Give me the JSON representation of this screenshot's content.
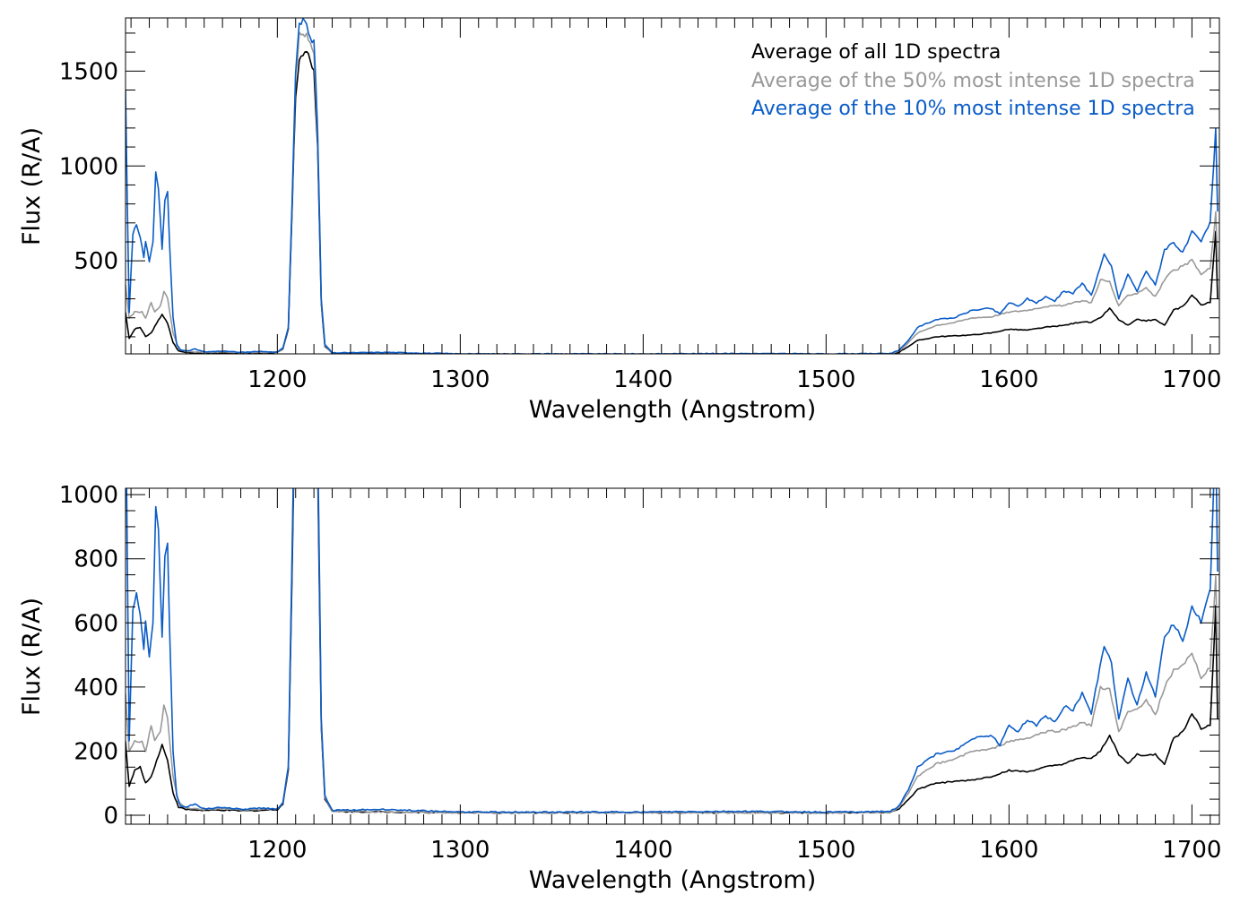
{
  "chart_data": [
    {
      "type": "line",
      "title": "",
      "xlabel": "Wavelength (Angstrom)",
      "ylabel": "Flux (R/A)",
      "xlim": [
        1117,
        1715
      ],
      "ylim": [
        10,
        1780
      ],
      "xticks": [
        1200,
        1300,
        1400,
        1500,
        1600,
        1700
      ],
      "yticks": [
        500,
        1000,
        1500
      ],
      "grid": false,
      "legend_position": "top-right",
      "legend": [
        "Average of all 1D spectra",
        "Average of the 50% most intense 1D spectra",
        "Average of the 10% most intense 1D spectra"
      ]
    },
    {
      "type": "line",
      "title": "",
      "xlabel": "Wavelength (Angstrom)",
      "ylabel": "Flux (R/A)",
      "xlim": [
        1117,
        1715
      ],
      "ylim": [
        -28,
        1020
      ],
      "xticks": [
        1200,
        1300,
        1400,
        1500,
        1600,
        1700
      ],
      "yticks": [
        0,
        200,
        400,
        600,
        800,
        1000
      ],
      "grid": false
    }
  ],
  "series": [
    {
      "name": "Average of all 1D spectra",
      "color": "#000000",
      "points": [
        [
          1117,
          230
        ],
        [
          1119,
          90
        ],
        [
          1122,
          140
        ],
        [
          1125,
          150
        ],
        [
          1128,
          100
        ],
        [
          1131,
          120
        ],
        [
          1134,
          170
        ],
        [
          1137,
          220
        ],
        [
          1140,
          170
        ],
        [
          1143,
          70
        ],
        [
          1146,
          25
        ],
        [
          1150,
          18
        ],
        [
          1160,
          15
        ],
        [
          1170,
          16
        ],
        [
          1180,
          14
        ],
        [
          1190,
          15
        ],
        [
          1200,
          18
        ],
        [
          1203,
          35
        ],
        [
          1206,
          140
        ],
        [
          1208,
          750
        ],
        [
          1210,
          1380
        ],
        [
          1212,
          1560
        ],
        [
          1215,
          1590
        ],
        [
          1218,
          1570
        ],
        [
          1220,
          1500
        ],
        [
          1222,
          1100
        ],
        [
          1224,
          280
        ],
        [
          1226,
          50
        ],
        [
          1230,
          12
        ],
        [
          1300,
          8
        ],
        [
          1400,
          8
        ],
        [
          1500,
          8
        ],
        [
          1535,
          10
        ],
        [
          1540,
          20
        ],
        [
          1545,
          50
        ],
        [
          1550,
          80
        ],
        [
          1560,
          100
        ],
        [
          1570,
          105
        ],
        [
          1580,
          110
        ],
        [
          1590,
          120
        ],
        [
          1600,
          140
        ],
        [
          1610,
          135
        ],
        [
          1620,
          150
        ],
        [
          1630,
          160
        ],
        [
          1640,
          180
        ],
        [
          1645,
          175
        ],
        [
          1650,
          200
        ],
        [
          1655,
          250
        ],
        [
          1660,
          190
        ],
        [
          1665,
          160
        ],
        [
          1670,
          190
        ],
        [
          1675,
          185
        ],
        [
          1680,
          190
        ],
        [
          1685,
          160
        ],
        [
          1690,
          240
        ],
        [
          1695,
          260
        ],
        [
          1700,
          320
        ],
        [
          1705,
          270
        ],
        [
          1710,
          280
        ],
        [
          1713,
          650
        ],
        [
          1714,
          300
        ]
      ]
    },
    {
      "name": "Average of the 50% most intense 1D spectra",
      "color": "#999999",
      "points": [
        [
          1117,
          380
        ],
        [
          1119,
          200
        ],
        [
          1122,
          230
        ],
        [
          1126,
          230
        ],
        [
          1128,
          200
        ],
        [
          1131,
          280
        ],
        [
          1133,
          230
        ],
        [
          1136,
          260
        ],
        [
          1138,
          340
        ],
        [
          1140,
          300
        ],
        [
          1143,
          120
        ],
        [
          1146,
          40
        ],
        [
          1150,
          22
        ],
        [
          1160,
          18
        ],
        [
          1170,
          20
        ],
        [
          1180,
          17
        ],
        [
          1190,
          18
        ],
        [
          1200,
          20
        ],
        [
          1203,
          38
        ],
        [
          1206,
          150
        ],
        [
          1208,
          790
        ],
        [
          1210,
          1460
        ],
        [
          1212,
          1690
        ],
        [
          1215,
          1700
        ],
        [
          1218,
          1640
        ],
        [
          1220,
          1580
        ],
        [
          1222,
          1150
        ],
        [
          1224,
          290
        ],
        [
          1226,
          55
        ],
        [
          1230,
          12
        ],
        [
          1300,
          8
        ],
        [
          1400,
          8
        ],
        [
          1500,
          8
        ],
        [
          1535,
          10
        ],
        [
          1540,
          25
        ],
        [
          1545,
          70
        ],
        [
          1550,
          120
        ],
        [
          1560,
          160
        ],
        [
          1570,
          175
        ],
        [
          1580,
          200
        ],
        [
          1590,
          205
        ],
        [
          1600,
          230
        ],
        [
          1610,
          240
        ],
        [
          1620,
          260
        ],
        [
          1630,
          265
        ],
        [
          1640,
          290
        ],
        [
          1645,
          280
        ],
        [
          1650,
          400
        ],
        [
          1655,
          390
        ],
        [
          1660,
          260
        ],
        [
          1665,
          320
        ],
        [
          1670,
          330
        ],
        [
          1675,
          360
        ],
        [
          1680,
          310
        ],
        [
          1685,
          400
        ],
        [
          1690,
          450
        ],
        [
          1695,
          470
        ],
        [
          1700,
          500
        ],
        [
          1705,
          430
        ],
        [
          1710,
          460
        ],
        [
          1713,
          750
        ],
        [
          1714,
          500
        ]
      ]
    },
    {
      "name": "Average of the 10% most intense 1D spectra",
      "color": "#0a5cc7",
      "points": [
        [
          1117,
          1380
        ],
        [
          1119,
          230
        ],
        [
          1121,
          650
        ],
        [
          1123,
          690
        ],
        [
          1125,
          620
        ],
        [
          1127,
          520
        ],
        [
          1128,
          610
        ],
        [
          1130,
          490
        ],
        [
          1132,
          600
        ],
        [
          1133.5,
          970
        ],
        [
          1135,
          880
        ],
        [
          1137,
          560
        ],
        [
          1138.5,
          820
        ],
        [
          1140,
          860
        ],
        [
          1141,
          600
        ],
        [
          1143,
          200
        ],
        [
          1145,
          60
        ],
        [
          1147,
          30
        ],
        [
          1150,
          25
        ],
        [
          1155,
          35
        ],
        [
          1160,
          20
        ],
        [
          1170,
          25
        ],
        [
          1180,
          18
        ],
        [
          1190,
          22
        ],
        [
          1200,
          20
        ],
        [
          1203,
          40
        ],
        [
          1206,
          150
        ],
        [
          1208,
          800
        ],
        [
          1210,
          1500
        ],
        [
          1212,
          1740
        ],
        [
          1215,
          1770
        ],
        [
          1218,
          1700
        ],
        [
          1220,
          1650
        ],
        [
          1222,
          1200
        ],
        [
          1224,
          300
        ],
        [
          1226,
          60
        ],
        [
          1230,
          15
        ],
        [
          1260,
          18
        ],
        [
          1300,
          10
        ],
        [
          1400,
          10
        ],
        [
          1450,
          12
        ],
        [
          1500,
          10
        ],
        [
          1535,
          12
        ],
        [
          1540,
          30
        ],
        [
          1545,
          80
        ],
        [
          1550,
          150
        ],
        [
          1555,
          170
        ],
        [
          1560,
          190
        ],
        [
          1570,
          200
        ],
        [
          1580,
          240
        ],
        [
          1590,
          250
        ],
        [
          1595,
          220
        ],
        [
          1600,
          280
        ],
        [
          1605,
          260
        ],
        [
          1610,
          300
        ],
        [
          1615,
          280
        ],
        [
          1620,
          310
        ],
        [
          1625,
          290
        ],
        [
          1630,
          340
        ],
        [
          1635,
          330
        ],
        [
          1640,
          380
        ],
        [
          1645,
          320
        ],
        [
          1652,
          530
        ],
        [
          1656,
          470
        ],
        [
          1660,
          300
        ],
        [
          1665,
          430
        ],
        [
          1670,
          340
        ],
        [
          1675,
          450
        ],
        [
          1680,
          370
        ],
        [
          1685,
          560
        ],
        [
          1690,
          600
        ],
        [
          1695,
          540
        ],
        [
          1700,
          650
        ],
        [
          1705,
          600
        ],
        [
          1710,
          700
        ],
        [
          1713,
          1200
        ],
        [
          1714,
          760
        ]
      ]
    }
  ]
}
